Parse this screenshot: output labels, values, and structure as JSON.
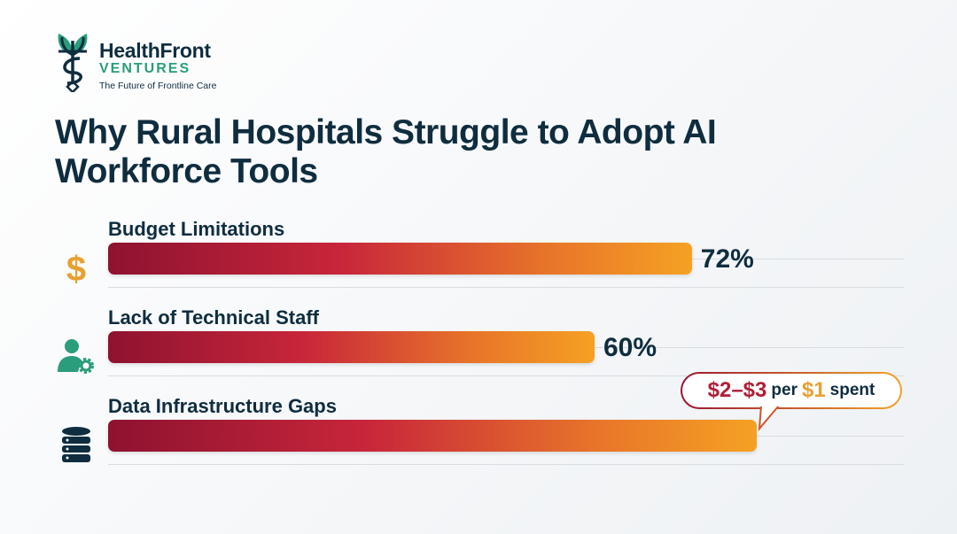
{
  "brand": {
    "name": "HealthFront",
    "sub": "VENTURES",
    "tagline": "The Future of Frontline Care",
    "accent": "#2a9d7c",
    "navy": "#0f2d3f"
  },
  "title": "Why Rural Hospitals Struggle to Adopt AI Workforce Tools",
  "chart_data": {
    "type": "bar",
    "orientation": "horizontal",
    "xlim": [
      0,
      100
    ],
    "categories": [
      "Budget Limitations",
      "Lack of Technical Staff",
      "Data Infrastructure Gaps"
    ],
    "values": [
      72,
      60,
      80
    ],
    "value_labels": [
      "72%",
      "60%",
      ""
    ],
    "icons": [
      "dollar-icon",
      "user-gear-icon",
      "database-icon"
    ],
    "bar_gradient": [
      "#8e1230",
      "#c8263a",
      "#f5a123"
    ]
  },
  "callout": {
    "amount": "$2–$3",
    "per": "per",
    "unit": "$1",
    "spent": "spent"
  }
}
